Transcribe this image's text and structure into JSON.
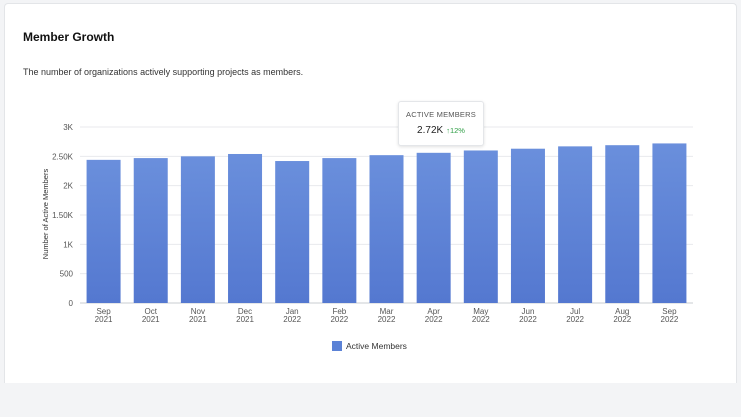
{
  "card": {
    "title": "Member Growth",
    "subtitle": "The number of organizations actively supporting projects as members."
  },
  "tooltip": {
    "label": "ACTIVE MEMBERS",
    "value": "2.72K",
    "arrow": "↑",
    "change": "12%"
  },
  "colors": {
    "bar": "#5b82d6",
    "bar_top": "#6a8fdc",
    "grid": "#e8eaed",
    "change": "#2e9e45"
  },
  "chart_data": {
    "type": "bar",
    "ylabel": "Number of Active Members",
    "ylim": [
      0,
      3000
    ],
    "yticks": [
      0,
      500,
      1000,
      1500,
      2000,
      2500,
      3000
    ],
    "ytick_labels": [
      "0",
      "500",
      "1K",
      "1.50K",
      "2K",
      "2.50K",
      "3K"
    ],
    "categories": [
      {
        "month": "Sep",
        "year": "2021"
      },
      {
        "month": "Oct",
        "year": "2021"
      },
      {
        "month": "Nov",
        "year": "2021"
      },
      {
        "month": "Dec",
        "year": "2021"
      },
      {
        "month": "Jan",
        "year": "2022"
      },
      {
        "month": "Feb",
        "year": "2022"
      },
      {
        "month": "Mar",
        "year": "2022"
      },
      {
        "month": "Apr",
        "year": "2022"
      },
      {
        "month": "May",
        "year": "2022"
      },
      {
        "month": "Jun",
        "year": "2022"
      },
      {
        "month": "Jul",
        "year": "2022"
      },
      {
        "month": "Aug",
        "year": "2022"
      },
      {
        "month": "Sep",
        "year": "2022"
      }
    ],
    "series": [
      {
        "name": "Active Members",
        "values": [
          2440,
          2470,
          2500,
          2540,
          2420,
          2470,
          2520,
          2560,
          2600,
          2630,
          2670,
          2690,
          2720
        ]
      }
    ],
    "grid": true,
    "legend": "bottom-center"
  }
}
